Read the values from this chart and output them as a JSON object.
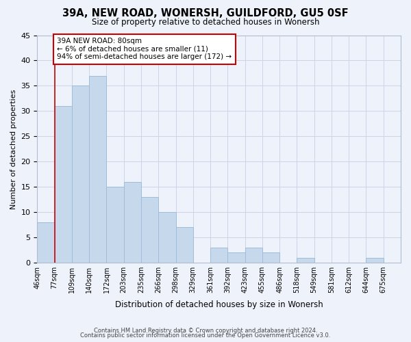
{
  "title": "39A, NEW ROAD, WONERSH, GUILDFORD, GU5 0SF",
  "subtitle": "Size of property relative to detached houses in Wonersh",
  "xlabel": "Distribution of detached houses by size in Wonersh",
  "ylabel": "Number of detached properties",
  "footer_lines": [
    "Contains HM Land Registry data © Crown copyright and database right 2024.",
    "Contains public sector information licensed under the Open Government Licence v3.0."
  ],
  "bin_labels": [
    "46sqm",
    "77sqm",
    "109sqm",
    "140sqm",
    "172sqm",
    "203sqm",
    "235sqm",
    "266sqm",
    "298sqm",
    "329sqm",
    "361sqm",
    "392sqm",
    "423sqm",
    "455sqm",
    "486sqm",
    "518sqm",
    "549sqm",
    "581sqm",
    "612sqm",
    "644sqm",
    "675sqm"
  ],
  "bar_heights": [
    8,
    31,
    35,
    37,
    15,
    16,
    13,
    10,
    7,
    0,
    3,
    2,
    3,
    2,
    0,
    1,
    0,
    0,
    0,
    1,
    0
  ],
  "bar_color": "#c5d8ec",
  "bar_edge_color": "#a0bcd8",
  "ylim": [
    0,
    45
  ],
  "yticks": [
    0,
    5,
    10,
    15,
    20,
    25,
    30,
    35,
    40,
    45
  ],
  "vline_x": 1,
  "vline_color": "#cc0000",
  "annotation_text": "39A NEW ROAD: 80sqm\n← 6% of detached houses are smaller (11)\n94% of semi-detached houses are larger (172) →",
  "annotation_box_color": "#ffffff",
  "annotation_box_edge_color": "#cc0000",
  "grid_color": "#ccd4e8",
  "background_color": "#eef2fa"
}
